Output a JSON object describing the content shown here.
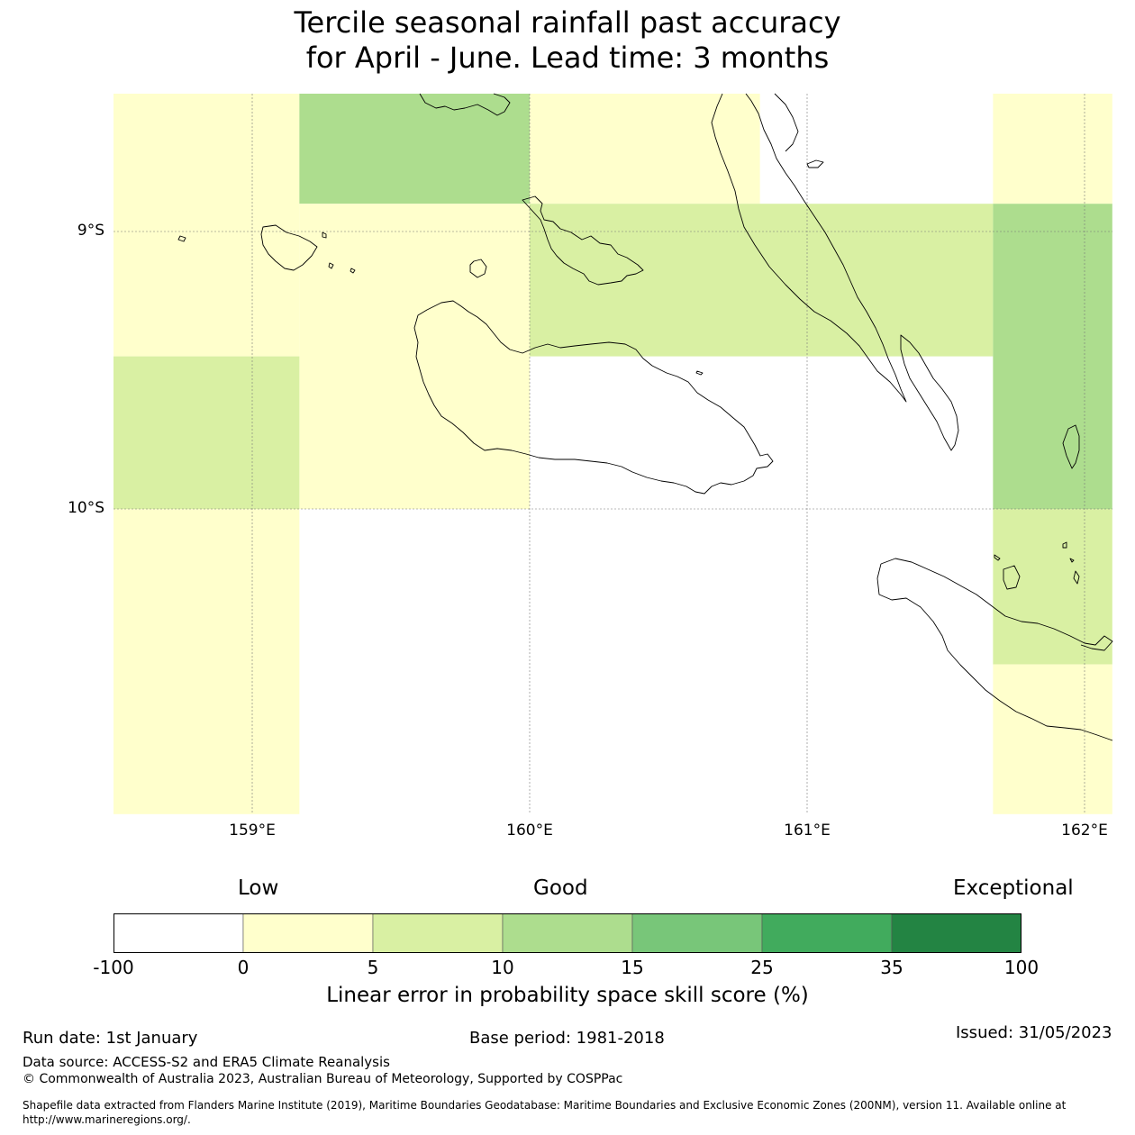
{
  "title_line1": "Tercile seasonal rainfall past accuracy",
  "title_line2": "for April - June. Lead time: 3 months",
  "map": {
    "lat_ticks": [
      "9°S",
      "10°S"
    ],
    "lon_ticks": [
      "159°E",
      "160°E",
      "161°E",
      "162°E"
    ],
    "grid_cells": [
      {
        "lon": [
          158.5,
          159.17
        ],
        "lat": [
          -8.5,
          -9.45
        ],
        "skill": 2
      },
      {
        "lon": [
          159.17,
          160.0
        ],
        "lat": [
          -8.5,
          -8.9
        ],
        "skill": 12
      },
      {
        "lon": [
          160.0,
          160.83
        ],
        "lat": [
          -8.5,
          -8.9
        ],
        "skill": 2
      },
      {
        "lon": [
          159.17,
          160.0
        ],
        "lat": [
          -8.9,
          -10.0
        ],
        "skill": 2
      },
      {
        "lon": [
          160.0,
          161.67
        ],
        "lat": [
          -8.9,
          -9.45
        ],
        "skill": 7
      },
      {
        "lon": [
          161.67,
          162.1
        ],
        "lat": [
          -8.5,
          -8.9
        ],
        "skill": 2
      },
      {
        "lon": [
          161.67,
          162.1
        ],
        "lat": [
          -8.9,
          -10.0
        ],
        "skill": 12
      },
      {
        "lon": [
          158.5,
          159.17
        ],
        "lat": [
          -9.45,
          -10.0
        ],
        "skill": 7
      },
      {
        "lon": [
          158.5,
          159.17
        ],
        "lat": [
          -10.0,
          -11.1
        ],
        "skill": 2
      },
      {
        "lon": [
          161.67,
          162.1
        ],
        "lat": [
          -10.0,
          -10.56
        ],
        "skill": 7
      },
      {
        "lon": [
          161.67,
          162.1
        ],
        "lat": [
          -10.56,
          -11.1
        ],
        "skill": 2
      }
    ]
  },
  "colorbar": {
    "categories": [
      "Low",
      "Good",
      "Exceptional"
    ],
    "bounds": [
      "-100",
      "0",
      "5",
      "10",
      "15",
      "25",
      "35",
      "100"
    ],
    "colors": [
      "#ffffff",
      "#ffffcc",
      "#d9f0a3",
      "#addd8e",
      "#78c679",
      "#41ab5d",
      "#238443"
    ],
    "label": "Linear error in probability space skill score (%)"
  },
  "footer": {
    "run_date": "Run date: 1st January",
    "base_period": "Base period: 1981-2018",
    "issued": "Issued: 31/05/2023",
    "data_source": "Data source: ACCESS-S2 and ERA5 Climate Reanalysis",
    "copyright": "© Commonwealth of Australia 2023, Australian Bureau of Meteorology, Supported by COSPPac",
    "shapefile_line1": "Shapefile data extracted from Flanders Marine Institute (2019), Maritime Boundaries Geodatabase: Maritime Boundaries and Exclusive Economic Zones (200NM), version 11. Available online at",
    "shapefile_line2": "http://www.marineregions.org/."
  }
}
